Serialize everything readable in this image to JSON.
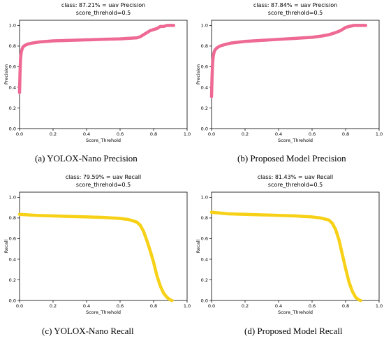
{
  "captions": [
    "(a) YOLOX-Nano Precision",
    "(b) Proposed Model Precision",
    "(c) YOLOX-Nano Recall",
    "(d) Proposed Model Recall"
  ],
  "chart_data": [
    {
      "type": "line",
      "title": "class: 87.21% = uav Precision",
      "subtitle": "score_threhold=0.5",
      "xlabel": "Score_Threhold",
      "ylabel": "Precision",
      "xlim": [
        0.0,
        1.0
      ],
      "ylim": [
        0.0,
        1.05
      ],
      "xticks": [
        "0.0",
        "0.2",
        "0.4",
        "0.6",
        "0.8",
        "1.0"
      ],
      "yticks": [
        "0.0",
        "0.2",
        "0.4",
        "0.6",
        "0.8",
        "1.0"
      ],
      "grid": false,
      "color": "#ee6a95",
      "series": [
        {
          "x": [
            0.0,
            0.003,
            0.006,
            0.01,
            0.015,
            0.02,
            0.03,
            0.05,
            0.08,
            0.12,
            0.2,
            0.3,
            0.4,
            0.5,
            0.6,
            0.65,
            0.7,
            0.72,
            0.75,
            0.78,
            0.8,
            0.82,
            0.84,
            0.86,
            0.88,
            0.9,
            0.92
          ],
          "y": [
            0.35,
            0.55,
            0.68,
            0.74,
            0.77,
            0.79,
            0.805,
            0.82,
            0.83,
            0.84,
            0.85,
            0.855,
            0.86,
            0.865,
            0.87,
            0.875,
            0.88,
            0.89,
            0.92,
            0.95,
            0.96,
            0.97,
            0.99,
            0.99,
            1.0,
            1.0,
            1.0
          ]
        }
      ]
    },
    {
      "type": "line",
      "title": "class: 87.84% = uav Precision",
      "subtitle": "score_threhold=0.5",
      "xlabel": "Score_Threhold",
      "ylabel": "Precision",
      "xlim": [
        0.0,
        1.0
      ],
      "ylim": [
        0.0,
        1.05
      ],
      "xticks": [
        "0.0",
        "0.2",
        "0.4",
        "0.6",
        "0.8",
        "1.0"
      ],
      "yticks": [
        "0.0",
        "0.2",
        "0.4",
        "0.6",
        "0.8",
        "1.0"
      ],
      "grid": false,
      "color": "#ee6a95",
      "series": [
        {
          "x": [
            0.0,
            0.003,
            0.006,
            0.01,
            0.015,
            0.02,
            0.03,
            0.05,
            0.08,
            0.12,
            0.2,
            0.3,
            0.4,
            0.5,
            0.6,
            0.65,
            0.7,
            0.74,
            0.77,
            0.79,
            0.8,
            0.82,
            0.85,
            0.88,
            0.9,
            0.92
          ],
          "y": [
            0.31,
            0.5,
            0.63,
            0.7,
            0.74,
            0.76,
            0.78,
            0.8,
            0.815,
            0.83,
            0.845,
            0.855,
            0.865,
            0.875,
            0.885,
            0.895,
            0.91,
            0.93,
            0.95,
            0.97,
            0.98,
            0.99,
            1.0,
            1.0,
            1.0,
            1.0
          ]
        }
      ]
    },
    {
      "type": "line",
      "title": "class: 79.59% = uav Recall",
      "subtitle": "score_threhold=0.5",
      "xlabel": "Score_Threhold",
      "ylabel": "Recall",
      "xlim": [
        0.0,
        1.0
      ],
      "ylim": [
        0.0,
        1.05
      ],
      "xticks": [
        "0.0",
        "0.2",
        "0.4",
        "0.6",
        "0.8",
        "1.0"
      ],
      "yticks": [
        "0.0",
        "0.2",
        "0.4",
        "0.6",
        "0.8",
        "1.0"
      ],
      "grid": false,
      "color": "#f7d117",
      "series": [
        {
          "x": [
            0.0,
            0.1,
            0.2,
            0.3,
            0.4,
            0.5,
            0.6,
            0.65,
            0.7,
            0.72,
            0.74,
            0.76,
            0.78,
            0.8,
            0.82,
            0.84,
            0.86,
            0.88,
            0.9,
            0.91
          ],
          "y": [
            0.835,
            0.825,
            0.82,
            0.815,
            0.81,
            0.805,
            0.795,
            0.785,
            0.76,
            0.73,
            0.67,
            0.58,
            0.48,
            0.37,
            0.24,
            0.14,
            0.07,
            0.03,
            0.005,
            0.0
          ]
        }
      ]
    },
    {
      "type": "line",
      "title": "class: 81.43% = uav Recall",
      "subtitle": "score_threhold=0.5",
      "xlabel": "Score_Threhold",
      "ylabel": "Recall",
      "xlim": [
        0.0,
        1.0
      ],
      "ylim": [
        0.0,
        1.05
      ],
      "xticks": [
        "0.0",
        "0.2",
        "0.4",
        "0.6",
        "0.8",
        "1.0"
      ],
      "yticks": [
        "0.0",
        "0.2",
        "0.4",
        "0.6",
        "0.8",
        "1.0"
      ],
      "grid": false,
      "color": "#f7d117",
      "series": [
        {
          "x": [
            0.0,
            0.1,
            0.2,
            0.3,
            0.4,
            0.5,
            0.6,
            0.65,
            0.7,
            0.72,
            0.74,
            0.76,
            0.78,
            0.8,
            0.82,
            0.84,
            0.86,
            0.88,
            0.89
          ],
          "y": [
            0.855,
            0.84,
            0.835,
            0.83,
            0.825,
            0.82,
            0.81,
            0.8,
            0.78,
            0.75,
            0.69,
            0.59,
            0.45,
            0.31,
            0.18,
            0.09,
            0.03,
            0.005,
            0.0
          ]
        }
      ]
    }
  ]
}
